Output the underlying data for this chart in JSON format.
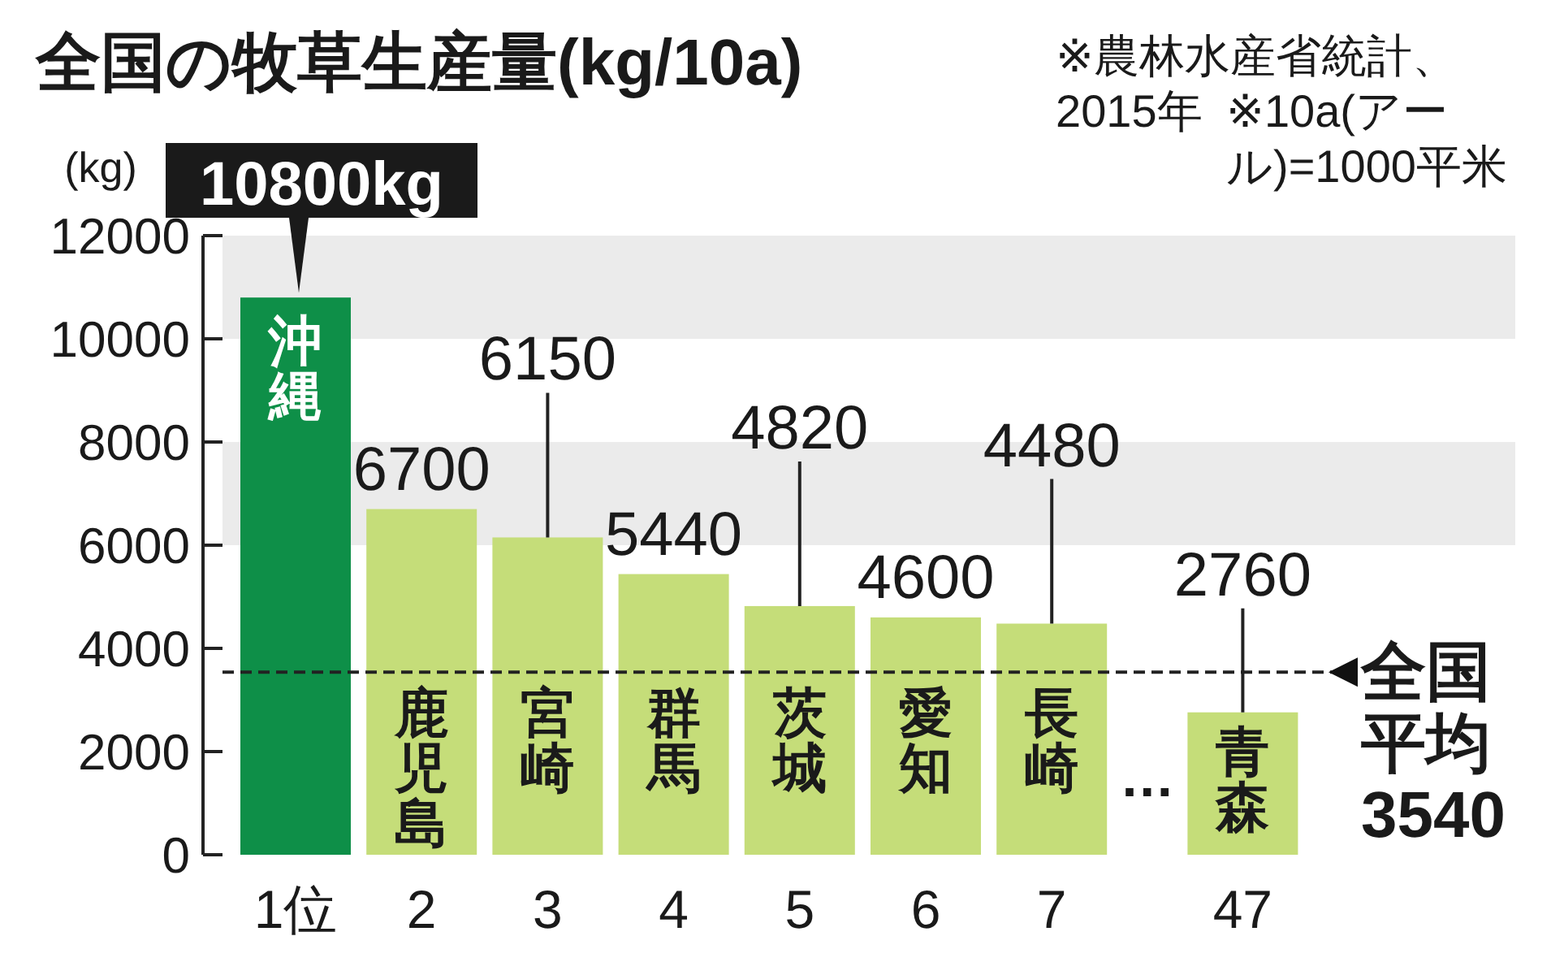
{
  "chart_data": {
    "type": "bar",
    "title": "全国の牧草生産量(kg/10a)",
    "ylabel": "(kg)",
    "categories": [
      "1位",
      "2",
      "3",
      "4",
      "5",
      "6",
      "7",
      "47"
    ],
    "values": [
      10800,
      6700,
      6150,
      5440,
      4820,
      4600,
      4480,
      2760
    ],
    "colors": [
      "#0e8f48",
      "#c5dd79",
      "#c5dd79",
      "#c5dd79",
      "#c5dd79",
      "#c5dd79",
      "#c5dd79",
      "#c5dd79"
    ],
    "value_labels": [
      "10800kg",
      "6700",
      "6150",
      "5440",
      "4820",
      "4600",
      "4480",
      "2760"
    ],
    "ylim": [
      0,
      12000
    ],
    "yticks": [
      0,
      2000,
      4000,
      6000,
      8000,
      10000,
      12000
    ],
    "bands": [
      {
        "axis": "y",
        "from": 6000,
        "to": 8000,
        "color": "#ebebeb"
      },
      {
        "axis": "y",
        "from": 10000,
        "to": 12000,
        "color": "#ebebeb"
      }
    ],
    "ref_lines": [
      {
        "axis": "y",
        "value": 3540,
        "label": "全国平均3540",
        "line_style": "dashed"
      }
    ],
    "annotations": [
      "※農林水産省統計、2015年",
      "※10a(アール)=1000平米",
      "沖縄",
      "鹿児島",
      "宮崎",
      "群馬",
      "茨城",
      "愛知",
      "長崎",
      "青森",
      "…"
    ]
  }
}
